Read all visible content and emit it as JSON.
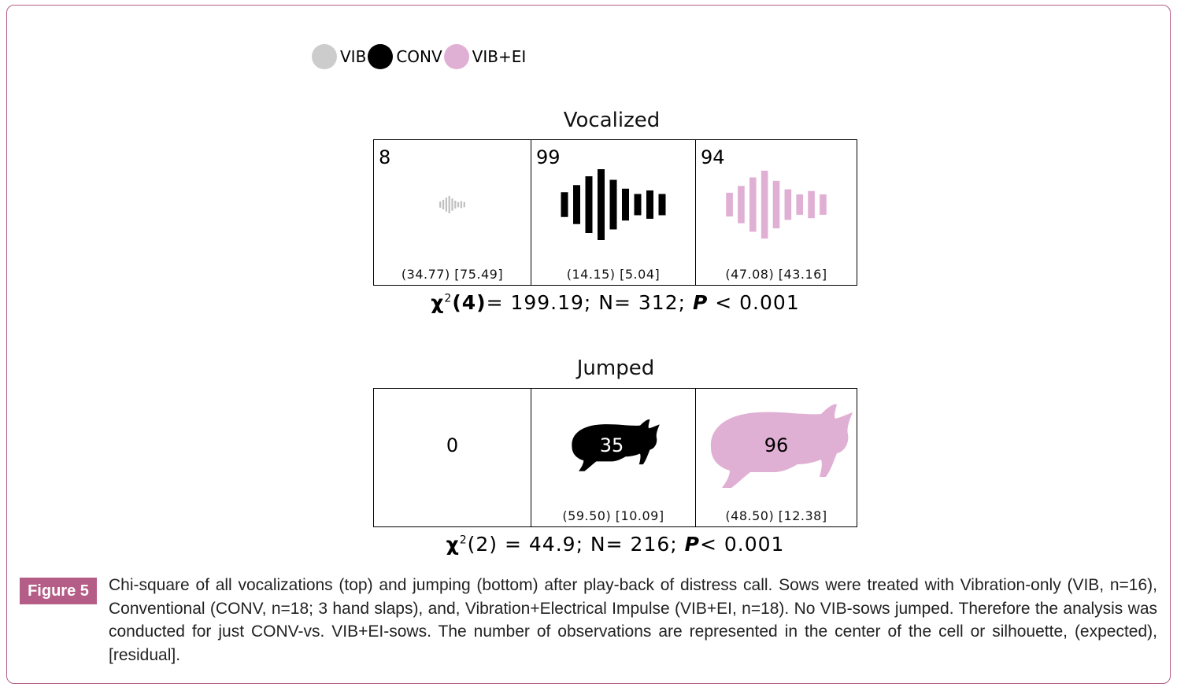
{
  "legend": {
    "items": [
      {
        "label": "VIB",
        "color": "#cccccc"
      },
      {
        "label": "CONV",
        "color": "#000000"
      },
      {
        "label": "VIB+EI",
        "color": "#e0b0d4"
      }
    ]
  },
  "chart_data": [
    {
      "type": "table",
      "title": "Vocalized",
      "categories": [
        "VIB",
        "CONV",
        "VIB+EI"
      ],
      "values": [
        8,
        99,
        94
      ],
      "expected": [
        34.77,
        14.15,
        47.08
      ],
      "residual": [
        75.49,
        5.04,
        43.16
      ],
      "stats_labels": [
        "(34.77) [75.49]",
        "(14.15) [5.04]",
        "(47.08) [43.16]"
      ],
      "count_labels": [
        "8",
        "99",
        "94"
      ],
      "test": {
        "chi_label": "χ",
        "df": "(4)",
        "sup": "2",
        "rest": "= 199.19; N= 312; ",
        "p": "P",
        "p_rest": " < 0.001"
      }
    },
    {
      "type": "table",
      "title": "Jumped",
      "categories": [
        "VIB",
        "CONV",
        "VIB+EI"
      ],
      "values": [
        0,
        35,
        96
      ],
      "expected": [
        null,
        59.5,
        48.5
      ],
      "residual": [
        null,
        10.09,
        12.38
      ],
      "stats_labels": [
        "",
        "(59.50) [10.09]",
        "(48.50) [12.38]"
      ],
      "count_labels": [
        "0",
        "35",
        "96"
      ],
      "test": {
        "chi_label": "χ",
        "df": "(2)",
        "sup": "2",
        "rest": " = 44.9; N= 216; ",
        "p": "P",
        "p_rest": "< 0.001"
      }
    }
  ],
  "colors": {
    "vib": "#bfbfbf",
    "conv": "#000000",
    "vibei": "#e0b0d4",
    "accent": "#b45d86"
  },
  "figure": {
    "badge": "Figure 5",
    "caption": "Chi-square of all vocalizations (top) and jumping (bottom) after play-back of distress call. Sows were treated with Vibration-only (VIB, n=16), Conventional (CONV, n=18; 3 hand slaps), and, Vibration+Electrical Impulse (VIB+EI, n=18). No VIB-sows jumped. Therefore the analysis was conducted for just CONV-vs. VIB+EI-sows. The number of observations are represented in the center of the cell or silhouette, (expected), [residual]."
  }
}
